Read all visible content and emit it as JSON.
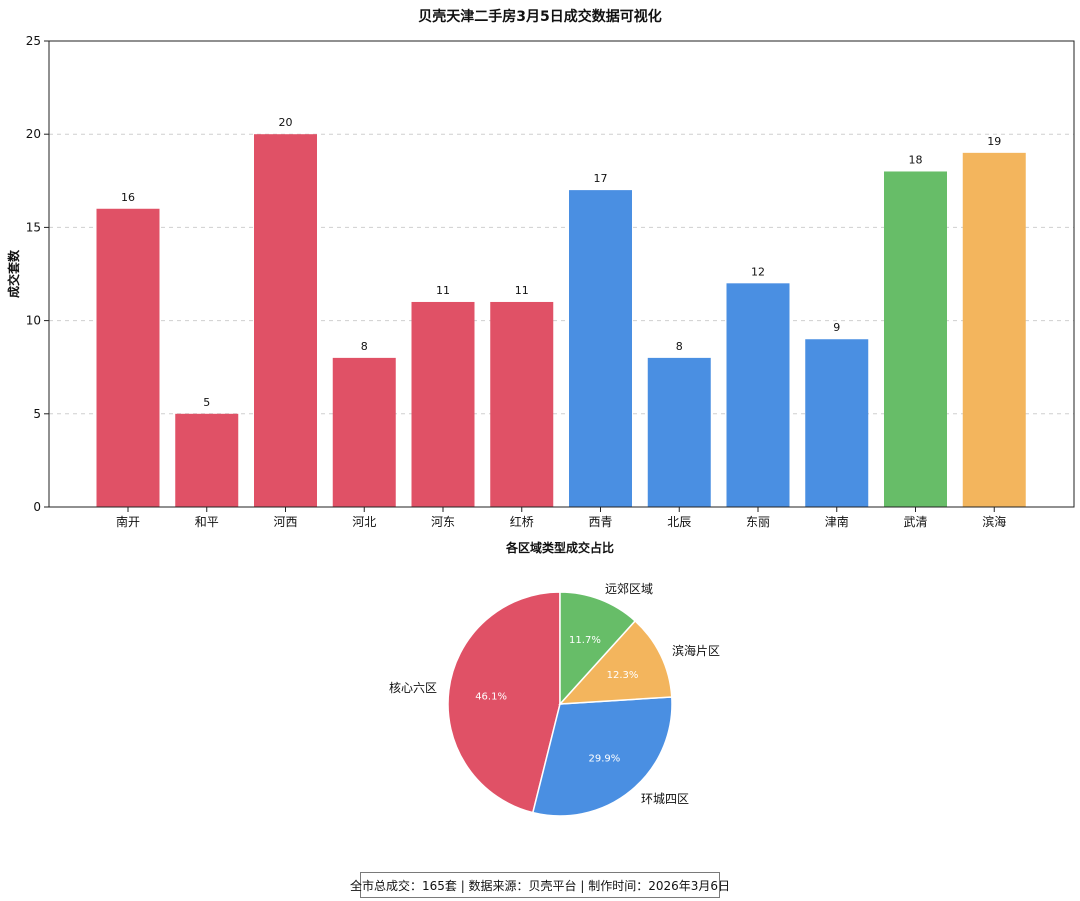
{
  "colors": {
    "core": "#e05166",
    "ring": "#4a8fe2",
    "outer": "#67bd68",
    "binhai": "#f3b55d",
    "grid": "#cfcfcf",
    "axis": "#222222",
    "white": "#ffffff"
  },
  "chart_data": [
    {
      "type": "bar",
      "title": "贝壳天津二手房3月5日成交数据可视化",
      "ylabel": "成交套数",
      "categories": [
        "南开",
        "和平",
        "河西",
        "河北",
        "河东",
        "红桥",
        "西青",
        "北辰",
        "东丽",
        "津南",
        "武清",
        "滨海"
      ],
      "values": [
        16,
        5,
        20,
        8,
        11,
        11,
        17,
        8,
        12,
        9,
        18,
        19
      ],
      "bar_colors": [
        "core",
        "core",
        "core",
        "core",
        "core",
        "core",
        "ring",
        "ring",
        "ring",
        "ring",
        "outer",
        "binhai"
      ],
      "ylim": [
        0,
        25
      ],
      "yticks": [
        0,
        5,
        10,
        15,
        20,
        25
      ],
      "grid": true,
      "data_labels": true
    },
    {
      "type": "pie",
      "title": "各区域类型成交占比",
      "slices": [
        {
          "label": "核心六区",
          "value": 46.1,
          "label_pct": "46.1%",
          "color": "core"
        },
        {
          "label": "环城四区",
          "value": 29.9,
          "label_pct": "29.9%",
          "color": "ring"
        },
        {
          "label": "滨海片区",
          "value": 12.3,
          "label_pct": "12.3%",
          "color": "binhai"
        },
        {
          "label": "远郊区域",
          "value": 11.7,
          "label_pct": "11.7%",
          "color": "outer"
        }
      ]
    }
  ],
  "footer": {
    "text": "全市总成交：165套 | 数据来源：贝壳平台 | 制作时间：2026年3月6日"
  }
}
